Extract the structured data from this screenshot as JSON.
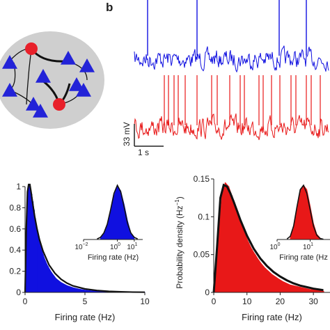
{
  "panel_b_label": "b",
  "network_diagram": {
    "node_colors": {
      "excitatory": "#2323d8",
      "inhibitory": "#e8202a",
      "background": "#cfcfcf",
      "edge": "#111111"
    }
  },
  "traces": {
    "scale_voltage": "33 mV",
    "scale_time": "1 s",
    "colors": {
      "top": "#1010e0",
      "bottom": "#e81818"
    }
  },
  "chart_data": [
    {
      "type": "area",
      "color": "#1010e0",
      "xlabel": "Firing rate (Hz)",
      "ylabel": "",
      "xlim": [
        0,
        10
      ],
      "ylim": [
        0,
        1.0
      ],
      "xticks": [
        "0",
        "5",
        "10"
      ],
      "yticks": [
        "0",
        "0.2",
        "0.4",
        "0.6",
        "0.8",
        "1"
      ],
      "histogram": {
        "x": [
          0.05,
          0.15,
          0.25,
          0.35,
          0.45,
          0.55,
          0.65,
          0.75,
          0.85,
          0.95,
          1.1,
          1.3,
          1.5,
          1.7,
          1.9,
          2.2,
          2.6,
          3.0,
          3.5,
          4.0,
          4.5,
          5.0,
          5.5,
          6.0,
          7.0,
          8.0,
          9.0,
          10.0
        ],
        "y": [
          0.3,
          0.72,
          0.95,
          1.01,
          0.98,
          0.93,
          0.86,
          0.78,
          0.7,
          0.63,
          0.54,
          0.44,
          0.36,
          0.3,
          0.25,
          0.19,
          0.13,
          0.095,
          0.065,
          0.045,
          0.032,
          0.022,
          0.016,
          0.012,
          0.007,
          0.004,
          0.002,
          0.001
        ]
      },
      "fit": {
        "x": [
          0.0,
          0.1,
          0.2,
          0.3,
          0.4,
          0.5,
          0.6,
          0.8,
          1.0,
          1.2,
          1.5,
          2.0,
          2.5,
          3.0,
          3.5,
          4.0,
          5.0,
          6.0,
          7.0,
          8.0,
          9.0,
          10.0
        ],
        "y": [
          0.0,
          0.6,
          0.95,
          1.04,
          1.02,
          0.95,
          0.87,
          0.72,
          0.6,
          0.5,
          0.39,
          0.26,
          0.18,
          0.125,
          0.088,
          0.062,
          0.033,
          0.018,
          0.01,
          0.006,
          0.003,
          0.002
        ]
      },
      "inset": {
        "type": "area",
        "xlabel": "Firing rate (Hz)",
        "xticks": [
          "10",
          "10",
          "10"
        ],
        "xtick_exponents": [
          "−2",
          "0",
          "1"
        ],
        "xlim_log10": [
          -2,
          1.5
        ],
        "histogram": {
          "x": [
            -1.0,
            -0.8,
            -0.6,
            -0.4,
            -0.2,
            0.0,
            0.2,
            0.4,
            0.6,
            0.8,
            1.0
          ],
          "y": [
            0.03,
            0.1,
            0.25,
            0.5,
            0.8,
            0.98,
            0.9,
            0.65,
            0.35,
            0.12,
            0.03
          ]
        },
        "fit": {
          "x": [
            -1.2,
            -1.0,
            -0.8,
            -0.6,
            -0.4,
            -0.2,
            0.0,
            0.2,
            0.4,
            0.6,
            0.8,
            1.0,
            1.2
          ],
          "y": [
            0.01,
            0.04,
            0.12,
            0.28,
            0.55,
            0.85,
            1.0,
            0.88,
            0.6,
            0.3,
            0.12,
            0.04,
            0.01
          ]
        }
      }
    },
    {
      "type": "area",
      "color": "#e81818",
      "xlabel": "Firing rate (Hz)",
      "ylabel": "Probability density (Hz",
      "ylabel_sup": "−1",
      "ylabel_close": ")",
      "xlim": [
        0,
        35
      ],
      "ylim": [
        0,
        0.15
      ],
      "xticks": [
        "0",
        "10",
        "20",
        "30"
      ],
      "yticks": [
        "0",
        "0.05",
        "0.1",
        "0.15"
      ],
      "histogram": {
        "x": [
          0.5,
          1.5,
          2.5,
          3.5,
          4.5,
          5.5,
          6.5,
          7.5,
          8.5,
          9.5,
          10.5,
          11.5,
          12.5,
          13.5,
          14.5,
          15.5,
          16.5,
          17.5,
          18.5,
          19.5,
          21,
          23,
          25,
          27,
          29,
          31,
          33
        ],
        "y": [
          0.02,
          0.08,
          0.13,
          0.145,
          0.14,
          0.128,
          0.115,
          0.1,
          0.088,
          0.076,
          0.066,
          0.057,
          0.05,
          0.043,
          0.037,
          0.032,
          0.028,
          0.024,
          0.021,
          0.018,
          0.014,
          0.01,
          0.008,
          0.006,
          0.004,
          0.003,
          0.002
        ]
      },
      "fit": {
        "x": [
          0,
          1,
          2,
          3,
          4,
          5,
          6,
          7,
          8,
          10,
          12,
          14,
          16,
          18,
          20,
          22,
          24,
          26,
          28,
          30,
          33
        ],
        "y": [
          0.0,
          0.06,
          0.125,
          0.142,
          0.14,
          0.131,
          0.12,
          0.108,
          0.096,
          0.075,
          0.058,
          0.045,
          0.035,
          0.027,
          0.021,
          0.016,
          0.012,
          0.009,
          0.007,
          0.005,
          0.003
        ]
      },
      "inset": {
        "type": "area",
        "xlabel": "Firing rate (Hz",
        "xticks": [
          "10",
          "10"
        ],
        "xtick_exponents": [
          "0",
          "1"
        ],
        "histogram": {
          "x": [
            0.4,
            0.5,
            0.6,
            0.7,
            0.8,
            0.9,
            1.0,
            1.1,
            1.2,
            1.3
          ],
          "y": [
            0.05,
            0.2,
            0.55,
            0.9,
            1.0,
            0.92,
            0.62,
            0.3,
            0.1,
            0.03
          ]
        },
        "fit": {
          "x": [
            0.3,
            0.4,
            0.5,
            0.6,
            0.7,
            0.8,
            0.9,
            1.0,
            1.1,
            1.2,
            1.3,
            1.4
          ],
          "y": [
            0.01,
            0.06,
            0.25,
            0.6,
            0.92,
            1.0,
            0.85,
            0.55,
            0.25,
            0.08,
            0.02,
            0.005
          ]
        }
      }
    }
  ]
}
